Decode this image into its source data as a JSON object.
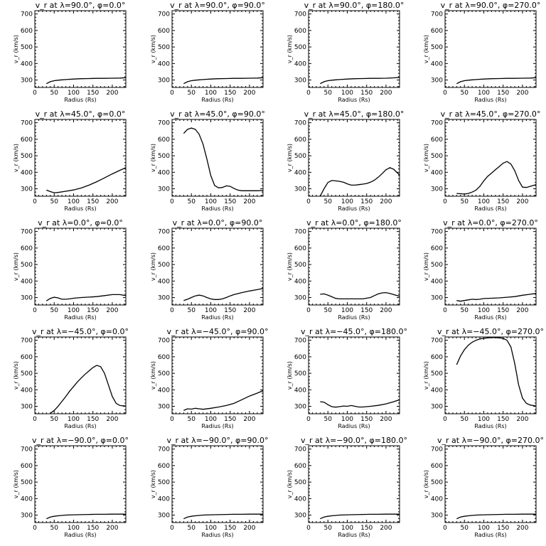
{
  "chart_data": [
    {
      "type": "line",
      "title": "v_r at λ=90.0°, φ=0.0°",
      "xlabel": "Radius (Rs)",
      "ylabel": "v_r (km/s)",
      "xlim": [
        0,
        235
      ],
      "ylim": [
        255,
        720
      ],
      "xticks": [
        0,
        50,
        100,
        150,
        200
      ],
      "yticks": [
        300,
        400,
        500,
        600,
        700
      ],
      "x": [
        30,
        40,
        50,
        60,
        70,
        80,
        100,
        120,
        140,
        160,
        180,
        200,
        220,
        235
      ],
      "y": [
        278,
        290,
        296,
        299,
        301,
        303,
        306,
        308,
        309,
        310,
        310,
        311,
        312,
        314
      ]
    },
    {
      "type": "line",
      "title": "v_r at λ=90.0°, φ=90.0°",
      "xlabel": "Radius (Rs)",
      "ylabel": "v_r (km/s)",
      "xlim": [
        0,
        235
      ],
      "ylim": [
        255,
        720
      ],
      "xticks": [
        0,
        50,
        100,
        150,
        200
      ],
      "yticks": [
        300,
        400,
        500,
        600,
        700
      ],
      "x": [
        30,
        40,
        50,
        60,
        70,
        80,
        100,
        120,
        140,
        160,
        180,
        200,
        220,
        235
      ],
      "y": [
        278,
        290,
        296,
        299,
        301,
        303,
        306,
        308,
        309,
        310,
        310,
        311,
        312,
        314
      ]
    },
    {
      "type": "line",
      "title": "v_r at λ=90.0°, φ=180.0°",
      "xlabel": "Radius (Rs)",
      "ylabel": "v_r (km/s)",
      "xlim": [
        0,
        235
      ],
      "ylim": [
        255,
        720
      ],
      "xticks": [
        0,
        50,
        100,
        150,
        200
      ],
      "yticks": [
        300,
        400,
        500,
        600,
        700
      ],
      "x": [
        30,
        40,
        50,
        60,
        70,
        80,
        100,
        120,
        140,
        160,
        180,
        200,
        220,
        235
      ],
      "y": [
        278,
        290,
        296,
        299,
        301,
        303,
        306,
        308,
        309,
        310,
        310,
        311,
        313,
        316
      ]
    },
    {
      "type": "line",
      "title": "v_r at λ=90.0°, φ=270.0°",
      "xlabel": "Radius (Rs)",
      "ylabel": "v_r (km/s)",
      "xlim": [
        0,
        235
      ],
      "ylim": [
        255,
        720
      ],
      "xticks": [
        0,
        50,
        100,
        150,
        200
      ],
      "yticks": [
        300,
        400,
        500,
        600,
        700
      ],
      "x": [
        30,
        40,
        50,
        60,
        70,
        80,
        100,
        120,
        140,
        160,
        180,
        200,
        220,
        235
      ],
      "y": [
        278,
        290,
        296,
        299,
        301,
        303,
        306,
        308,
        309,
        310,
        310,
        311,
        312,
        314
      ]
    },
    {
      "type": "line",
      "title": "v_r at λ=45.0°, φ=0.0°",
      "xlabel": "Radius (Rs)",
      "ylabel": "v_r (km/s)",
      "xlim": [
        0,
        235
      ],
      "ylim": [
        255,
        720
      ],
      "xticks": [
        0,
        50,
        100,
        150,
        200
      ],
      "yticks": [
        300,
        400,
        500,
        600,
        700
      ],
      "x": [
        30,
        40,
        50,
        60,
        80,
        100,
        120,
        140,
        160,
        180,
        200,
        220,
        235
      ],
      "y": [
        292,
        283,
        276,
        278,
        285,
        293,
        305,
        322,
        343,
        366,
        390,
        412,
        428
      ]
    },
    {
      "type": "line",
      "title": "v_r at λ=45.0°, φ=90.0°",
      "xlabel": "Radius (Rs)",
      "ylabel": "v_r (km/s)",
      "xlim": [
        0,
        235
      ],
      "ylim": [
        255,
        720
      ],
      "xticks": [
        0,
        50,
        100,
        150,
        200
      ],
      "yticks": [
        300,
        400,
        500,
        600,
        700
      ],
      "x": [
        30,
        40,
        50,
        60,
        70,
        80,
        90,
        100,
        110,
        120,
        130,
        140,
        150,
        160,
        170,
        180,
        200,
        220,
        235
      ],
      "y": [
        635,
        660,
        668,
        660,
        630,
        570,
        480,
        380,
        320,
        306,
        308,
        318,
        315,
        302,
        292,
        288,
        288,
        288,
        290
      ]
    },
    {
      "type": "line",
      "title": "v_r at λ=45.0°, φ=180.0°",
      "xlabel": "Radius (Rs)",
      "ylabel": "v_r (km/s)",
      "xlim": [
        0,
        235
      ],
      "ylim": [
        255,
        720
      ],
      "xticks": [
        0,
        50,
        100,
        150,
        200
      ],
      "yticks": [
        300,
        400,
        500,
        600,
        700
      ],
      "x": [
        30,
        40,
        50,
        60,
        70,
        80,
        90,
        100,
        110,
        120,
        130,
        140,
        150,
        160,
        170,
        180,
        190,
        200,
        210,
        220,
        230,
        235
      ],
      "y": [
        255,
        300,
        338,
        350,
        348,
        345,
        340,
        330,
        322,
        322,
        325,
        328,
        332,
        340,
        352,
        370,
        392,
        415,
        428,
        418,
        395,
        382
      ]
    },
    {
      "type": "line",
      "title": "v_r at λ=45.0°, φ=270.0°",
      "xlabel": "Radius (Rs)",
      "ylabel": "v_r (km/s)",
      "xlim": [
        0,
        235
      ],
      "ylim": [
        255,
        720
      ],
      "xticks": [
        0,
        50,
        100,
        150,
        200
      ],
      "yticks": [
        300,
        400,
        500,
        600,
        700
      ],
      "x": [
        30,
        40,
        50,
        60,
        70,
        80,
        90,
        100,
        110,
        120,
        130,
        140,
        150,
        160,
        170,
        180,
        190,
        200,
        210,
        220,
        235
      ],
      "y": [
        272,
        270,
        268,
        272,
        280,
        292,
        315,
        348,
        375,
        395,
        415,
        435,
        455,
        465,
        450,
        410,
        350,
        310,
        308,
        315,
        325
      ]
    },
    {
      "type": "line",
      "title": "v_r at λ=0.0°, φ=0.0°",
      "xlabel": "Radius (Rs)",
      "ylabel": "v_r (km/s)",
      "xlim": [
        0,
        235
      ],
      "ylim": [
        255,
        720
      ],
      "xticks": [
        0,
        50,
        100,
        150,
        200
      ],
      "yticks": [
        300,
        400,
        500,
        600,
        700
      ],
      "x": [
        30,
        40,
        50,
        60,
        70,
        80,
        90,
        100,
        120,
        140,
        160,
        180,
        200,
        220,
        235
      ],
      "y": [
        280,
        295,
        302,
        298,
        290,
        290,
        292,
        296,
        300,
        303,
        306,
        312,
        318,
        318,
        312
      ]
    },
    {
      "type": "line",
      "title": "v_r at λ=0.0°, φ=90.0°",
      "xlabel": "Radius (Rs)",
      "ylabel": "v_r (km/s)",
      "xlim": [
        0,
        235
      ],
      "ylim": [
        255,
        720
      ],
      "xticks": [
        0,
        50,
        100,
        150,
        200
      ],
      "yticks": [
        300,
        400,
        500,
        600,
        700
      ],
      "x": [
        30,
        40,
        50,
        60,
        70,
        80,
        90,
        100,
        110,
        120,
        130,
        140,
        150,
        160,
        180,
        200,
        220,
        235
      ],
      "y": [
        282,
        290,
        300,
        310,
        315,
        310,
        300,
        292,
        288,
        288,
        292,
        300,
        310,
        318,
        330,
        340,
        348,
        355
      ]
    },
    {
      "type": "line",
      "title": "v_r at λ=0.0°, φ=180.0°",
      "xlabel": "Radius (Rs)",
      "ylabel": "v_r (km/s)",
      "xlim": [
        0,
        235
      ],
      "ylim": [
        255,
        720
      ],
      "xticks": [
        0,
        50,
        100,
        150,
        200
      ],
      "yticks": [
        300,
        400,
        500,
        600,
        700
      ],
      "x": [
        30,
        40,
        50,
        60,
        70,
        80,
        100,
        120,
        140,
        160,
        170,
        180,
        190,
        200,
        210,
        220,
        235
      ],
      "y": [
        320,
        322,
        315,
        305,
        295,
        292,
        292,
        292,
        292,
        300,
        312,
        322,
        328,
        330,
        325,
        318,
        308
      ]
    },
    {
      "type": "line",
      "title": "v_r at λ=0.0°, φ=270.0°",
      "xlabel": "Radius (Rs)",
      "ylabel": "v_r (km/s)",
      "xlim": [
        0,
        235
      ],
      "ylim": [
        255,
        720
      ],
      "xticks": [
        0,
        50,
        100,
        150,
        200
      ],
      "yticks": [
        300,
        400,
        500,
        600,
        700
      ],
      "x": [
        30,
        40,
        50,
        60,
        70,
        80,
        90,
        100,
        120,
        140,
        160,
        180,
        200,
        220,
        235
      ],
      "y": [
        282,
        278,
        282,
        286,
        290,
        288,
        290,
        294,
        296,
        298,
        302,
        306,
        314,
        320,
        325
      ]
    },
    {
      "type": "line",
      "title": "v_r at λ=−45.0°, φ=0.0°",
      "xlabel": "Radius (Rs)",
      "ylabel": "v_r (km/s)",
      "xlim": [
        0,
        235
      ],
      "ylim": [
        255,
        720
      ],
      "xticks": [
        0,
        50,
        100,
        150,
        200
      ],
      "yticks": [
        300,
        400,
        500,
        600,
        700
      ],
      "x": [
        40,
        50,
        60,
        70,
        80,
        90,
        100,
        110,
        120,
        130,
        140,
        150,
        160,
        170,
        180,
        190,
        200,
        210,
        220,
        235
      ],
      "y": [
        258,
        275,
        300,
        330,
        360,
        392,
        420,
        448,
        472,
        495,
        515,
        535,
        548,
        540,
        500,
        430,
        360,
        318,
        305,
        302
      ]
    },
    {
      "type": "line",
      "title": "v_r at λ=−45.0°, φ=90.0°",
      "xlabel": "Radius (Rs)",
      "ylabel": "v_r (km/s)",
      "xlim": [
        0,
        235
      ],
      "ylim": [
        255,
        720
      ],
      "xticks": [
        0,
        50,
        100,
        150,
        200
      ],
      "yticks": [
        300,
        400,
        500,
        600,
        700
      ],
      "x": [
        30,
        40,
        50,
        60,
        70,
        80,
        100,
        120,
        140,
        160,
        180,
        200,
        220,
        235
      ],
      "y": [
        275,
        285,
        283,
        288,
        285,
        282,
        288,
        296,
        305,
        318,
        340,
        362,
        380,
        395
      ]
    },
    {
      "type": "line",
      "title": "v_r at λ=−45.0°, φ=180.0°",
      "xlabel": "Radius (Rs)",
      "ylabel": "v_r (km/s)",
      "xlim": [
        0,
        235
      ],
      "ylim": [
        255,
        720
      ],
      "xticks": [
        0,
        50,
        100,
        150,
        200
      ],
      "yticks": [
        300,
        400,
        500,
        600,
        700
      ],
      "x": [
        30,
        40,
        50,
        60,
        70,
        80,
        90,
        100,
        110,
        120,
        130,
        140,
        160,
        180,
        200,
        220,
        235
      ],
      "y": [
        328,
        325,
        310,
        298,
        295,
        298,
        302,
        300,
        305,
        300,
        296,
        296,
        300,
        306,
        315,
        328,
        340
      ]
    },
    {
      "type": "line",
      "title": "v_r at λ=−45.0°, φ=270.0°",
      "xlabel": "Radius (Rs)",
      "ylabel": "v_r (km/s)",
      "xlim": [
        0,
        235
      ],
      "ylim": [
        255,
        720
      ],
      "xticks": [
        0,
        50,
        100,
        150,
        200
      ],
      "yticks": [
        300,
        400,
        500,
        600,
        700
      ],
      "x": [
        30,
        40,
        50,
        60,
        70,
        80,
        90,
        100,
        110,
        120,
        130,
        140,
        150,
        160,
        170,
        180,
        190,
        200,
        210,
        220,
        235
      ],
      "y": [
        552,
        605,
        643,
        670,
        688,
        700,
        708,
        712,
        715,
        716,
        716,
        715,
        712,
        700,
        660,
        560,
        430,
        350,
        318,
        308,
        302
      ]
    },
    {
      "type": "line",
      "title": "v_r at λ=−90.0°, φ=0.0°",
      "xlabel": "Radius (Rs)",
      "ylabel": "v_r (km/s)",
      "xlim": [
        0,
        235
      ],
      "ylim": [
        255,
        720
      ],
      "xticks": [
        0,
        50,
        100,
        150,
        200
      ],
      "yticks": [
        300,
        400,
        500,
        600,
        700
      ],
      "x": [
        30,
        40,
        50,
        60,
        70,
        80,
        100,
        120,
        140,
        160,
        180,
        200,
        220,
        235
      ],
      "y": [
        278,
        288,
        293,
        296,
        298,
        300,
        302,
        303,
        304,
        305,
        305,
        306,
        306,
        306
      ]
    },
    {
      "type": "line",
      "title": "v_r at λ=−90.0°, φ=90.0°",
      "xlabel": "Radius (Rs)",
      "ylabel": "v_r (km/s)",
      "xlim": [
        0,
        235
      ],
      "ylim": [
        255,
        720
      ],
      "xticks": [
        0,
        50,
        100,
        150,
        200
      ],
      "yticks": [
        300,
        400,
        500,
        600,
        700
      ],
      "x": [
        30,
        40,
        50,
        60,
        70,
        80,
        100,
        120,
        140,
        160,
        180,
        200,
        220,
        235
      ],
      "y": [
        278,
        288,
        293,
        296,
        298,
        300,
        302,
        303,
        304,
        305,
        305,
        306,
        306,
        306
      ]
    },
    {
      "type": "line",
      "title": "v_r at λ=−90.0°, φ=180.0°",
      "xlabel": "Radius (Rs)",
      "ylabel": "v_r (km/s)",
      "xlim": [
        0,
        235
      ],
      "ylim": [
        255,
        720
      ],
      "xticks": [
        0,
        50,
        100,
        150,
        200
      ],
      "yticks": [
        300,
        400,
        500,
        600,
        700
      ],
      "x": [
        30,
        40,
        50,
        60,
        70,
        80,
        100,
        120,
        140,
        160,
        180,
        200,
        220,
        235
      ],
      "y": [
        278,
        288,
        293,
        296,
        298,
        300,
        302,
        303,
        304,
        305,
        305,
        306,
        306,
        306
      ]
    },
    {
      "type": "line",
      "title": "v_r at λ=−90.0°, φ=270.0°",
      "xlabel": "Radius (Rs)",
      "ylabel": "v_r (km/s)",
      "xlim": [
        0,
        235
      ],
      "ylim": [
        255,
        720
      ],
      "xticks": [
        0,
        50,
        100,
        150,
        200
      ],
      "yticks": [
        300,
        400,
        500,
        600,
        700
      ],
      "x": [
        30,
        40,
        50,
        60,
        70,
        80,
        100,
        120,
        140,
        160,
        180,
        200,
        220,
        235
      ],
      "y": [
        278,
        288,
        293,
        296,
        298,
        300,
        302,
        303,
        304,
        305,
        305,
        306,
        306,
        306
      ]
    }
  ]
}
